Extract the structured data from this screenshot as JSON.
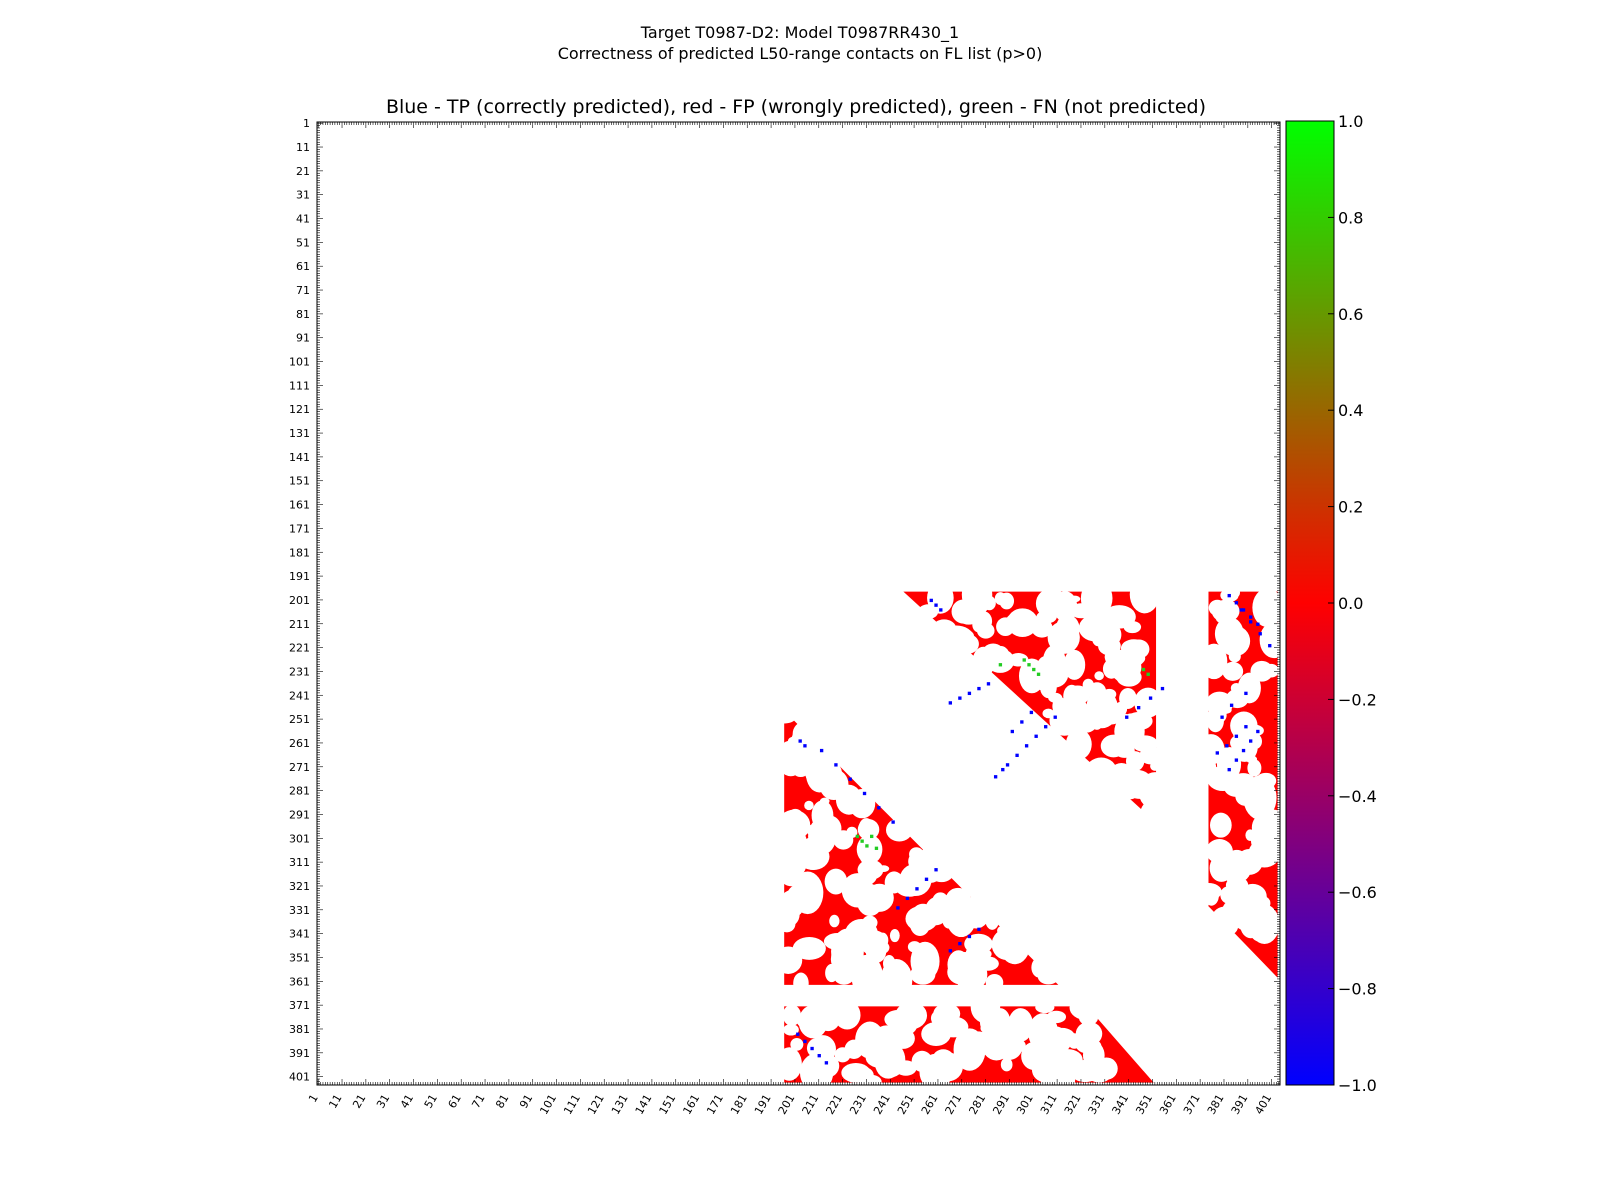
{
  "chart_data": {
    "type": "heatmap",
    "title_line1": "Target T0987-D2: Model T0987RR430_1",
    "title_line2": "Correctness of predicted L50-range contacts on FL list (p>0)",
    "subtitle": "Blue - TP (correctly predicted), red - FP (wrongly predicted), green - FN (not predicted)",
    "x_range": [
      1,
      404
    ],
    "y_range": [
      1,
      404
    ],
    "tick_labels": [
      "1",
      "11",
      "21",
      "31",
      "41",
      "51",
      "61",
      "71",
      "81",
      "91",
      "101",
      "111",
      "121",
      "131",
      "141",
      "151",
      "161",
      "171",
      "181",
      "191",
      "201",
      "211",
      "221",
      "231",
      "241",
      "251",
      "261",
      "271",
      "281",
      "291",
      "301",
      "311",
      "321",
      "331",
      "341",
      "351",
      "361",
      "371",
      "381",
      "391",
      "401"
    ],
    "colorbar": {
      "min": -1.0,
      "max": 1.0,
      "ticks": [
        "1.0",
        "0.8",
        "0.6",
        "0.4",
        "0.2",
        "0.0",
        "−0.2",
        "−0.4",
        "−0.6",
        "−0.8",
        "−1.0"
      ],
      "colors": [
        "#0000ff",
        "#ff0000",
        "#00ff00"
      ]
    },
    "legend": {
      "tp": "Blue - TP (correctly predicted)",
      "fp": "red - FP (wrongly predicted)",
      "fn": "green - FN (not predicted)"
    },
    "colors": {
      "tp": "#0000ff",
      "fp": "#ff0000",
      "fn": "#22cc22"
    },
    "fp_regions": [
      {
        "name": "block-upper-middle",
        "shape": "triangle",
        "points": [
          [
            247,
            198
          ],
          [
            353,
            198
          ],
          [
            353,
            295
          ]
        ]
      },
      {
        "name": "block-upper-right",
        "shape": "triangle-notched",
        "points": [
          [
            375,
            198
          ],
          [
            404,
            198
          ],
          [
            404,
            360
          ],
          [
            375,
            330
          ]
        ]
      },
      {
        "name": "block-mid-left",
        "shape": "triangle",
        "points": [
          [
            197,
            248
          ],
          [
            197,
            363
          ],
          [
            312,
            363
          ]
        ]
      },
      {
        "name": "block-bottom",
        "shape": "trapezoid",
        "points": [
          [
            197,
            372
          ],
          [
            324,
            372
          ],
          [
            352,
            404
          ],
          [
            197,
            404
          ]
        ]
      }
    ],
    "tp_contacts": [
      [
        203,
        260
      ],
      [
        205,
        262
      ],
      [
        212,
        264
      ],
      [
        218,
        270
      ],
      [
        224,
        276
      ],
      [
        230,
        282
      ],
      [
        236,
        288
      ],
      [
        242,
        294
      ],
      [
        258,
        201
      ],
      [
        260,
        203
      ],
      [
        262,
        205
      ],
      [
        266,
        244
      ],
      [
        270,
        242
      ],
      [
        274,
        240
      ],
      [
        278,
        238
      ],
      [
        282,
        236
      ],
      [
        244,
        330
      ],
      [
        248,
        326
      ],
      [
        252,
        322
      ],
      [
        256,
        318
      ],
      [
        260,
        314
      ],
      [
        266,
        348
      ],
      [
        270,
        345
      ],
      [
        274,
        342
      ],
      [
        278,
        339
      ],
      [
        285,
        275
      ],
      [
        288,
        272
      ],
      [
        290,
        270
      ],
      [
        294,
        266
      ],
      [
        298,
        262
      ],
      [
        302,
        258
      ],
      [
        306,
        254
      ],
      [
        310,
        250
      ],
      [
        388,
        205
      ],
      [
        392,
        210
      ],
      [
        396,
        215
      ],
      [
        400,
        220
      ],
      [
        378,
        265
      ],
      [
        382,
        262
      ],
      [
        386,
        258
      ],
      [
        390,
        254
      ],
      [
        202,
        383
      ],
      [
        205,
        386
      ],
      [
        208,
        389
      ],
      [
        211,
        392
      ],
      [
        214,
        395
      ],
      [
        380,
        250
      ],
      [
        384,
        245
      ],
      [
        390,
        240
      ],
      [
        340,
        250
      ],
      [
        345,
        246
      ],
      [
        350,
        242
      ],
      [
        355,
        238
      ],
      [
        292,
        256
      ],
      [
        296,
        252
      ],
      [
        300,
        248
      ],
      [
        383,
        199
      ],
      [
        386,
        202
      ],
      [
        389,
        205
      ],
      [
        392,
        208
      ],
      [
        395,
        211
      ],
      [
        383,
        272
      ],
      [
        386,
        268
      ],
      [
        389,
        264
      ],
      [
        392,
        260
      ],
      [
        395,
        256
      ]
    ],
    "fn_contacts": [
      [
        227,
        300
      ],
      [
        229,
        302
      ],
      [
        231,
        304
      ],
      [
        233,
        300
      ],
      [
        235,
        305
      ],
      [
        297,
        226
      ],
      [
        299,
        228
      ],
      [
        301,
        230
      ],
      [
        303,
        232
      ],
      [
        287,
        228
      ],
      [
        347,
        230
      ],
      [
        349,
        232
      ]
    ]
  }
}
